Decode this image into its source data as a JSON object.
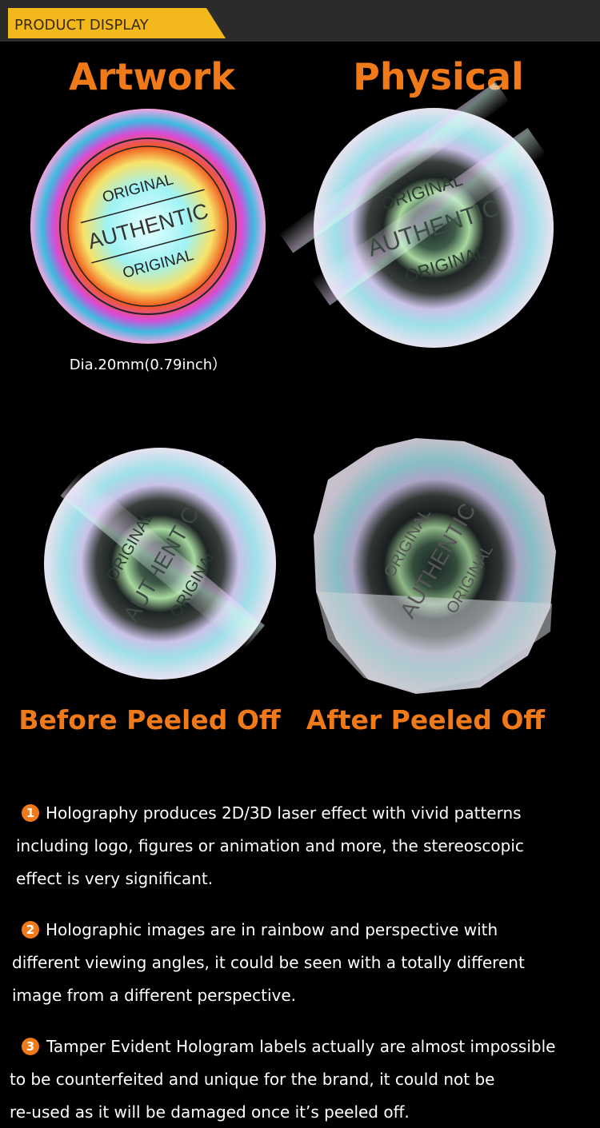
{
  "header": {
    "title": "PRODUCT DISPLAY"
  },
  "top": {
    "left_title": "Artwork",
    "right_title": "Physical",
    "size_note": "Dia.20mm(0.79inch）"
  },
  "sticker": {
    "labels": [
      "ORIGINAL",
      "AUTHENTIC",
      "ORIGINAL"
    ]
  },
  "bottom": {
    "left_title": "Before Peeled Off",
    "right_title": "After Peeled Off"
  },
  "paragraphs": [
    {
      "number": "1",
      "lines": [
        "Holography produces 2D/3D laser effect with vivid patterns",
        "including logo, figures or animation and more, the stereoscopic",
        "effect is very significant."
      ]
    },
    {
      "number": "2",
      "lines": [
        "Holographic images are in rainbow and perspective with",
        "different viewing angles, it could be seen with a totally different",
        "image from a different perspective."
      ]
    },
    {
      "number": "3",
      "lines": [
        "Tamper Evident Hologram labels actually are almost impossible",
        "to be counterfeited and unique for the brand, it could not be",
        "re-used as it will be damaged once it’s peeled off."
      ]
    }
  ]
}
